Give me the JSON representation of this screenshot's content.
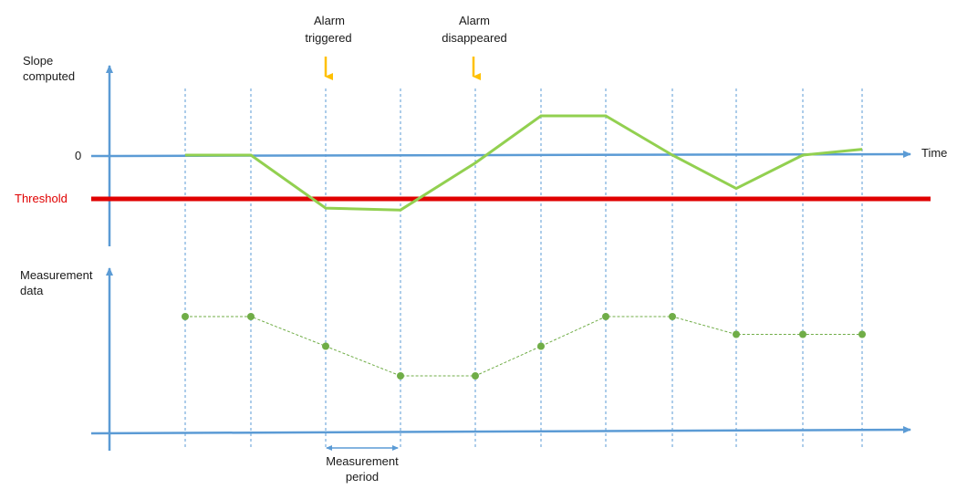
{
  "labels": {
    "slope_axis_line1": "Slope",
    "slope_axis_line2": "computed",
    "zero": "0",
    "threshold": "Threshold",
    "time": "Time",
    "measurement_axis_line1": "Measurement",
    "measurement_axis_line2": "data",
    "alarm_triggered_line1": "Alarm",
    "alarm_triggered_line2": "triggered",
    "alarm_disappeared_line1": "Alarm",
    "alarm_disappeared_line2": "disappeared",
    "measurement_period_line1": "Measurement",
    "measurement_period_line2": "period"
  },
  "colors": {
    "axis": "#5b9bd5",
    "threshold": "#e00000",
    "slope_line": "#92d050",
    "measurement_points": "#70ad47",
    "alarm_arrow": "#ffc000",
    "gridline": "#5b9bd5",
    "text": "#1a1a1a"
  },
  "chart_data": {
    "type": "line",
    "x": [
      1,
      2,
      3,
      4,
      5,
      6,
      7,
      8,
      9,
      10,
      11
    ],
    "series": [
      {
        "values": [
          0,
          0,
          -1.35,
          -1.4,
          -0.2,
          1.0,
          1.0,
          0,
          -0.85,
          0,
          0.15
        ]
      },
      {
        "values": [
          4,
          4,
          3,
          2,
          2,
          3,
          4,
          4,
          3.4,
          3.4,
          3.4
        ]
      }
    ],
    "threshold": -1.1,
    "alarm_triggered_at": 3,
    "alarm_disappeared_at": 5
  }
}
